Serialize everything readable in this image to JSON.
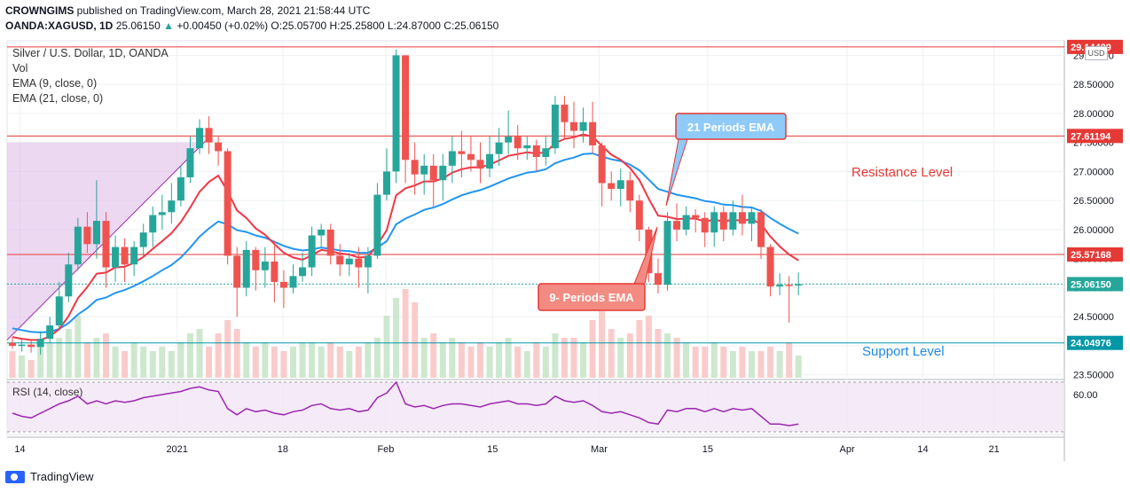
{
  "header": {
    "publisher_name": "CROWNGIMS",
    "publisher_text": "published on TradingView.com, March 28, 2021 21:58:44 UTC",
    "symbol": "OANDA:XAGUSD, 1D",
    "last": "25.06150",
    "change": "+0.00450 (+0.02%)",
    "open": "O:25.05700",
    "high": "H:25.25800",
    "low": "L:24.87000",
    "close": "C:25.06150"
  },
  "legend": {
    "title": "Silver / U.S. Dollar, 1D, OANDA",
    "vol": "Vol",
    "ema9": "EMA (9, close, 0)",
    "ema21": "EMA (21, close, 0)",
    "rsi": "RSI (14, close)"
  },
  "currency": "USD",
  "footer": {
    "brand": "TradingView"
  },
  "colors": {
    "up": "#26a69a",
    "down": "#ef5350",
    "ema9": "#f23645",
    "ema21": "#2196f3",
    "rsi": "#9c27b0",
    "support": "#0097a7",
    "resistance": "#e53935"
  },
  "chart_data": {
    "type": "candlestick",
    "y_axis_ticks": [
      "29.00000",
      "28.50000",
      "28.00000",
      "27.50000",
      "27.00000",
      "26.50000",
      "26.00000",
      "25.50000",
      "25.00000",
      "24.50000",
      "24.00000",
      "23.50000"
    ],
    "ylim": [
      23.45,
      29.25
    ],
    "x_axis_ticks": [
      "14",
      "2021",
      "18",
      "Feb",
      "15",
      "Mar",
      "15",
      "Apr",
      "14",
      "21"
    ],
    "price_levels": [
      {
        "label": "29.14489",
        "value": 29.14489,
        "color": "#e53935"
      },
      {
        "label": "27.61194",
        "value": 27.61194,
        "color": "#e53935"
      },
      {
        "label": "25.57168",
        "value": 25.57168,
        "color": "#e53935"
      },
      {
        "label": "25.06150",
        "value": 25.0615,
        "color": "#26a69a"
      },
      {
        "label": "24.04976",
        "value": 24.04976,
        "color": "#0097a7"
      }
    ],
    "candles": [
      [
        24.05,
        24.0,
        24.15,
        23.95
      ],
      [
        24.0,
        24.02,
        24.1,
        23.9
      ],
      [
        24.02,
        23.98,
        24.1,
        23.88
      ],
      [
        23.98,
        24.12,
        24.25,
        23.85
      ],
      [
        24.12,
        24.35,
        24.5,
        24.05
      ],
      [
        24.35,
        24.85,
        25.1,
        24.3
      ],
      [
        24.85,
        25.4,
        25.6,
        24.75
      ],
      [
        25.4,
        26.05,
        26.2,
        25.3
      ],
      [
        26.05,
        25.75,
        26.3,
        25.6
      ],
      [
        25.75,
        26.15,
        26.85,
        25.5
      ],
      [
        26.15,
        25.35,
        26.3,
        25.0
      ],
      [
        25.35,
        25.7,
        25.9,
        25.1
      ],
      [
        25.7,
        25.4,
        25.85,
        25.1
      ],
      [
        25.4,
        25.7,
        25.8,
        25.2
      ],
      [
        25.7,
        25.95,
        26.1,
        25.55
      ],
      [
        25.95,
        26.25,
        26.4,
        25.7
      ],
      [
        26.25,
        26.3,
        26.6,
        26.0
      ],
      [
        26.3,
        26.5,
        26.8,
        26.1
      ],
      [
        26.5,
        26.9,
        27.1,
        26.4
      ],
      [
        26.9,
        27.4,
        27.6,
        26.8
      ],
      [
        27.4,
        27.75,
        27.9,
        27.3
      ],
      [
        27.75,
        27.5,
        27.95,
        27.3
      ],
      [
        27.5,
        27.35,
        27.6,
        27.1
      ],
      [
        27.35,
        25.55,
        27.4,
        25.4
      ],
      [
        25.55,
        25.0,
        25.7,
        24.5
      ],
      [
        25.0,
        25.65,
        25.8,
        24.85
      ],
      [
        25.65,
        25.3,
        25.7,
        24.95
      ],
      [
        25.3,
        25.45,
        25.7,
        25.0
      ],
      [
        25.45,
        25.1,
        25.8,
        24.75
      ],
      [
        25.1,
        25.0,
        25.3,
        24.65
      ],
      [
        25.0,
        25.2,
        25.4,
        24.9
      ],
      [
        25.2,
        25.35,
        25.6,
        25.1
      ],
      [
        25.35,
        25.9,
        26.05,
        25.2
      ],
      [
        25.9,
        26.0,
        26.1,
        25.7
      ],
      [
        26.0,
        25.55,
        26.1,
        25.4
      ],
      [
        25.55,
        25.4,
        25.75,
        25.2
      ],
      [
        25.4,
        25.5,
        25.6,
        25.2
      ],
      [
        25.5,
        25.35,
        25.7,
        25.0
      ],
      [
        25.35,
        25.55,
        25.7,
        24.9
      ],
      [
        25.55,
        26.6,
        26.8,
        25.5
      ],
      [
        26.6,
        27.0,
        27.4,
        26.5
      ],
      [
        27.0,
        29.0,
        29.1,
        26.8
      ],
      [
        29.0,
        27.2,
        29.0,
        26.8
      ],
      [
        27.2,
        26.95,
        27.5,
        26.6
      ],
      [
        26.95,
        27.1,
        27.3,
        26.6
      ],
      [
        27.1,
        26.85,
        27.3,
        26.4
      ],
      [
        26.85,
        27.1,
        27.3,
        26.5
      ],
      [
        27.1,
        27.35,
        27.6,
        26.8
      ],
      [
        27.35,
        27.3,
        27.7,
        26.9
      ],
      [
        27.3,
        27.2,
        27.6,
        27.0
      ],
      [
        27.2,
        27.05,
        27.5,
        26.8
      ],
      [
        27.05,
        27.3,
        27.6,
        26.9
      ],
      [
        27.3,
        27.5,
        27.75,
        27.1
      ],
      [
        27.5,
        27.6,
        28.05,
        27.3
      ],
      [
        27.6,
        27.4,
        27.8,
        27.2
      ],
      [
        27.4,
        27.45,
        27.6,
        27.2
      ],
      [
        27.45,
        27.25,
        27.55,
        27.0
      ],
      [
        27.25,
        27.4,
        27.6,
        27.1
      ],
      [
        27.4,
        28.15,
        28.3,
        27.3
      ],
      [
        28.15,
        27.85,
        28.3,
        27.55
      ],
      [
        27.85,
        27.7,
        28.2,
        27.4
      ],
      [
        27.7,
        27.85,
        28.1,
        27.5
      ],
      [
        27.85,
        27.45,
        28.2,
        27.3
      ],
      [
        27.45,
        26.8,
        27.5,
        26.4
      ],
      [
        26.8,
        26.7,
        27.0,
        26.5
      ],
      [
        26.7,
        26.85,
        27.05,
        26.4
      ],
      [
        26.85,
        26.5,
        27.0,
        26.3
      ],
      [
        26.5,
        26.0,
        26.6,
        25.8
      ],
      [
        26.0,
        25.25,
        26.05,
        25.1
      ],
      [
        25.25,
        25.05,
        25.5,
        24.9
      ],
      [
        25.05,
        26.15,
        26.3,
        24.95
      ],
      [
        26.15,
        26.0,
        26.45,
        25.8
      ],
      [
        26.0,
        26.25,
        26.4,
        25.9
      ],
      [
        26.25,
        26.2,
        26.35,
        25.95
      ],
      [
        26.2,
        25.95,
        26.3,
        25.7
      ],
      [
        25.95,
        26.3,
        26.4,
        25.7
      ],
      [
        26.3,
        26.0,
        26.4,
        25.8
      ],
      [
        26.0,
        26.3,
        26.5,
        25.9
      ],
      [
        26.3,
        26.1,
        26.6,
        25.9
      ],
      [
        26.1,
        26.3,
        26.4,
        25.8
      ],
      [
        26.3,
        25.7,
        26.35,
        25.5
      ],
      [
        25.7,
        25.02,
        25.75,
        24.85
      ],
      [
        25.02,
        25.05,
        25.25,
        24.87
      ],
      [
        25.05,
        25.03,
        25.2,
        24.4
      ],
      [
        25.05,
        25.06,
        25.26,
        24.87
      ]
    ],
    "ema9": [
      24.15,
      24.12,
      24.1,
      24.1,
      24.16,
      24.29,
      24.51,
      24.82,
      25.01,
      25.24,
      25.26,
      25.35,
      25.36,
      25.43,
      25.53,
      25.67,
      25.8,
      25.94,
      26.13,
      26.38,
      26.65,
      26.82,
      26.93,
      26.66,
      26.33,
      26.2,
      26.02,
      25.91,
      25.75,
      25.6,
      25.52,
      25.48,
      25.56,
      25.65,
      25.63,
      25.59,
      25.57,
      25.52,
      25.53,
      25.74,
      25.99,
      26.59,
      26.71,
      26.76,
      26.83,
      26.83,
      26.88,
      26.98,
      27.04,
      27.07,
      27.07,
      27.12,
      27.19,
      27.27,
      27.3,
      27.33,
      27.31,
      27.33,
      27.49,
      27.56,
      27.59,
      27.64,
      27.6,
      27.44,
      27.29,
      27.2,
      27.06,
      26.85,
      26.53,
      26.24,
      26.22,
      26.18,
      26.19,
      26.19,
      26.14,
      26.17,
      26.14,
      26.17,
      26.15,
      26.18,
      26.09,
      25.88,
      25.71,
      25.57,
      25.47
    ],
    "ema21": [
      24.3,
      24.27,
      24.24,
      24.23,
      24.24,
      24.29,
      24.39,
      24.54,
      24.65,
      24.79,
      24.83,
      24.91,
      24.96,
      25.03,
      25.11,
      25.2,
      25.3,
      25.39,
      25.52,
      25.69,
      25.88,
      26.02,
      26.14,
      26.09,
      25.99,
      25.96,
      25.9,
      25.86,
      25.79,
      25.72,
      25.67,
      25.64,
      25.66,
      25.69,
      25.67,
      25.64,
      25.63,
      25.6,
      25.6,
      25.69,
      25.8,
      26.09,
      26.19,
      26.26,
      26.34,
      26.38,
      26.44,
      26.52,
      26.59,
      26.64,
      26.68,
      26.74,
      26.81,
      26.88,
      26.93,
      26.98,
      27.0,
      27.04,
      27.14,
      27.2,
      27.24,
      27.3,
      27.31,
      27.26,
      27.21,
      27.18,
      27.12,
      27.02,
      26.86,
      26.7,
      26.65,
      26.6,
      26.57,
      26.54,
      26.49,
      26.47,
      26.43,
      26.42,
      26.39,
      26.38,
      26.32,
      26.2,
      26.1,
      26.01,
      25.93
    ],
    "volume": [
      0.3,
      0.25,
      0.2,
      0.35,
      0.4,
      0.45,
      0.55,
      0.7,
      0.4,
      0.45,
      0.5,
      0.35,
      0.3,
      0.4,
      0.35,
      0.3,
      0.35,
      0.3,
      0.4,
      0.5,
      0.55,
      0.35,
      0.5,
      0.65,
      0.55,
      0.4,
      0.35,
      0.4,
      0.35,
      0.3,
      0.35,
      0.4,
      0.4,
      0.35,
      0.4,
      0.35,
      0.3,
      0.35,
      0.4,
      0.45,
      0.7,
      0.9,
      1.0,
      0.85,
      0.45,
      0.5,
      0.4,
      0.45,
      0.4,
      0.35,
      0.4,
      0.35,
      0.4,
      0.45,
      0.35,
      0.3,
      0.4,
      0.35,
      0.5,
      0.45,
      0.45,
      0.4,
      0.65,
      0.75,
      0.55,
      0.45,
      0.5,
      0.65,
      0.7,
      0.55,
      0.5,
      0.45,
      0.4,
      0.35,
      0.35,
      0.4,
      0.35,
      0.3,
      0.35,
      0.3,
      0.3,
      0.35,
      0.3,
      0.4,
      0.25
    ],
    "rsi": [
      52,
      50,
      49,
      52,
      55,
      58,
      60,
      63,
      58,
      60,
      58,
      60,
      59,
      60,
      62,
      63,
      64,
      65,
      66,
      68,
      69,
      67,
      66,
      55,
      51,
      55,
      53,
      54,
      52,
      51,
      53,
      54,
      57,
      58,
      55,
      54,
      55,
      53,
      54,
      62,
      65,
      72,
      58,
      56,
      57,
      55,
      57,
      58,
      58,
      57,
      56,
      58,
      59,
      60,
      58,
      58,
      57,
      58,
      63,
      60,
      59,
      60,
      57,
      53,
      52,
      53,
      51,
      49,
      46,
      45,
      54,
      53,
      55,
      55,
      53,
      55,
      53,
      55,
      54,
      55,
      50,
      45,
      45,
      44,
      45
    ],
    "rsi_ticks": [
      "60.00"
    ],
    "annotations": [
      {
        "text": "Resistance Level"
      },
      {
        "text": "Support Level"
      },
      {
        "text": "21 Periods EMA"
      },
      {
        "text": "9- Periods EMA"
      }
    ]
  }
}
